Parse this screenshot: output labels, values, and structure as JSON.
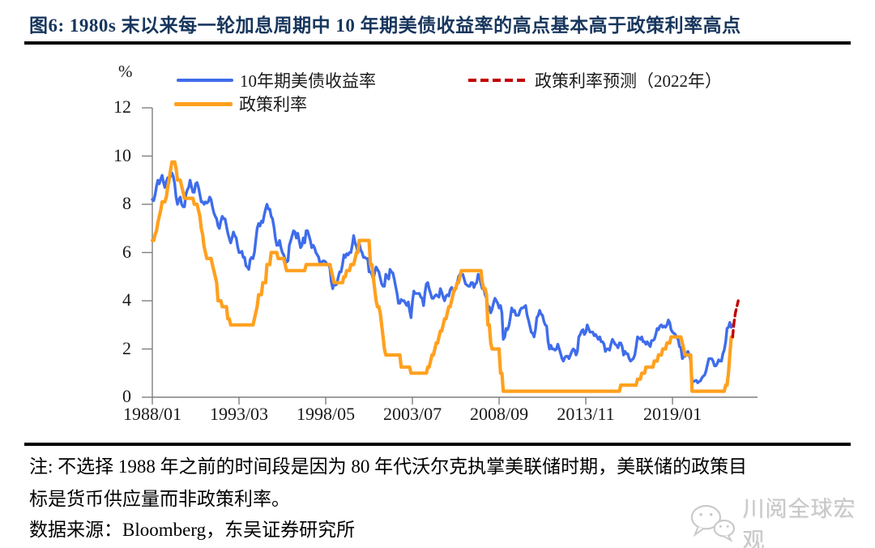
{
  "title": "图6: 1980s 末以来每一轮加息周期中 10 年期美债收益率的高点基本高于政策利率高点",
  "unit_label": "%",
  "legend": [
    {
      "label": "10年期美债收益率",
      "color": "#3E6CEB",
      "style": "solid"
    },
    {
      "label": "政策利率",
      "color": "#FFA01E",
      "style": "solid"
    },
    {
      "label": "政策利率预测（2022年）",
      "color": "#C00000",
      "style": "dashed"
    }
  ],
  "note_lines": [
    "注: 不选择 1988 年之前的时间段是因为 80 年代沃尔克执掌美联储时期，美联储的政策目",
    "标是货币供应量而非政策利率。"
  ],
  "source": "数据来源：Bloomberg，东吴证券研究所",
  "watermark": "川阅全球宏观",
  "colors": {
    "title": "#17365D",
    "axis": "#7f7f7f",
    "tick_text": "#1a1a1a",
    "watermark": "#c7c7c7"
  },
  "chart_data": {
    "type": "line",
    "title": "",
    "ylabel": "%",
    "ylim": [
      0,
      12
    ],
    "y_ticks": [
      0,
      2,
      4,
      6,
      8,
      10,
      12
    ],
    "x_tick_labels": [
      "1988/01",
      "1993/03",
      "1998/05",
      "2003/07",
      "2008/09",
      "2013/11",
      "2019/01"
    ],
    "x_step": "month",
    "grid": false,
    "legend_position": "top",
    "series": [
      {
        "name": "10年期美债收益率",
        "color": "#3E6CEB",
        "dash": null,
        "start": "1988/01",
        "values": [
          8.2,
          8.15,
          8.4,
          8.75,
          9.0,
          8.85,
          9.05,
          9.2,
          8.9,
          8.7,
          8.95,
          9.1,
          9.05,
          9.15,
          9.3,
          9.15,
          8.85,
          8.3,
          8.0,
          8.2,
          8.3,
          8.0,
          7.9,
          7.9,
          8.4,
          8.6,
          8.7,
          9.0,
          8.75,
          8.5,
          8.5,
          8.85,
          8.9,
          8.7,
          8.4,
          8.1,
          8.1,
          8.0,
          8.1,
          8.05,
          8.1,
          8.3,
          8.2,
          7.9,
          7.65,
          7.5,
          7.4,
          7.1,
          7.0,
          7.3,
          7.5,
          7.4,
          7.4,
          7.1,
          6.8,
          6.6,
          6.4,
          6.6,
          6.85,
          6.7,
          6.6,
          6.25,
          6.0,
          6.0,
          6.05,
          5.8,
          5.8,
          5.45,
          5.4,
          5.3,
          5.7,
          5.8,
          5.75,
          6.0,
          6.5,
          7.0,
          7.2,
          7.1,
          7.3,
          7.25,
          7.55,
          7.8,
          8.0,
          7.8,
          7.8,
          7.5,
          7.4,
          7.05,
          6.6,
          6.3,
          6.3,
          6.5,
          6.2,
          6.0,
          5.9,
          5.7,
          5.6,
          5.65,
          6.3,
          6.5,
          6.7,
          6.9,
          6.85,
          6.6,
          6.8,
          6.5,
          6.2,
          6.3,
          6.6,
          6.4,
          6.9,
          6.9,
          6.7,
          6.5,
          6.2,
          6.3,
          6.2,
          6.0,
          5.9,
          5.8,
          5.5,
          5.6,
          5.65,
          5.65,
          5.6,
          5.5,
          5.5,
          5.35,
          4.8,
          4.5,
          4.8,
          4.65,
          4.7,
          5.0,
          5.2,
          5.2,
          5.5,
          5.9,
          5.8,
          5.95,
          5.9,
          6.0,
          6.0,
          6.3,
          6.7,
          6.4,
          6.25,
          6.0,
          6.4,
          6.1,
          6.0,
          5.8,
          5.8,
          5.75,
          5.75,
          5.2,
          5.2,
          5.1,
          4.9,
          5.15,
          5.4,
          5.3,
          5.2,
          4.95,
          4.7,
          4.6,
          4.6,
          5.1,
          5.0,
          4.9,
          5.3,
          5.2,
          5.15,
          4.9,
          4.6,
          4.3,
          3.9,
          3.9,
          4.05,
          4.0,
          4.0,
          3.9,
          3.8,
          3.95,
          3.6,
          3.3,
          3.95,
          4.4,
          4.3,
          4.3,
          4.3,
          4.3,
          4.15,
          4.1,
          3.8,
          4.35,
          4.7,
          4.75,
          4.5,
          4.3,
          4.1,
          4.1,
          4.2,
          4.25,
          4.2,
          4.15,
          4.5,
          4.35,
          4.15,
          4.0,
          4.2,
          4.25,
          4.2,
          4.45,
          4.55,
          4.45,
          4.4,
          4.55,
          4.7,
          5.0,
          5.1,
          5.1,
          5.1,
          4.9,
          4.7,
          4.65,
          4.6,
          4.6,
          4.75,
          4.75,
          4.55,
          4.7,
          4.75,
          5.1,
          5.0,
          4.7,
          4.5,
          4.55,
          4.25,
          4.1,
          3.75,
          3.75,
          3.5,
          3.65,
          3.9,
          4.1,
          4.0,
          3.9,
          3.7,
          3.8,
          3.5,
          2.4,
          2.5,
          2.85,
          2.8,
          2.95,
          3.3,
          3.7,
          3.55,
          3.6,
          3.4,
          3.4,
          3.4,
          3.6,
          3.7,
          3.7,
          3.75,
          3.8,
          3.4,
          3.2,
          2.95,
          2.7,
          2.65,
          2.5,
          2.8,
          3.3,
          3.4,
          3.6,
          3.45,
          3.4,
          3.15,
          3.0,
          2.95,
          2.3,
          2.0,
          2.15,
          2.0,
          2.0,
          1.95,
          2.0,
          2.2,
          2.0,
          1.8,
          1.6,
          1.5,
          1.65,
          1.7,
          1.7,
          1.6,
          1.75,
          1.9,
          2.0,
          1.95,
          1.75,
          1.9,
          2.5,
          2.6,
          2.75,
          2.8,
          2.6,
          2.7,
          3.0,
          2.85,
          2.7,
          2.7,
          2.7,
          2.55,
          2.6,
          2.5,
          2.4,
          2.5,
          2.3,
          2.3,
          2.2,
          1.9,
          2.0,
          2.0,
          1.95,
          2.2,
          2.4,
          2.3,
          2.2,
          2.15,
          2.05,
          2.25,
          2.25,
          2.1,
          1.75,
          1.9,
          1.8,
          1.8,
          1.6,
          1.5,
          1.55,
          1.6,
          1.75,
          2.1,
          2.5,
          2.45,
          2.4,
          2.5,
          2.3,
          2.3,
          2.2,
          2.3,
          2.2,
          2.1,
          2.35,
          2.35,
          2.4,
          2.6,
          2.85,
          2.8,
          2.95,
          3.0,
          2.9,
          2.95,
          2.9,
          3.0,
          3.2,
          3.1,
          2.8,
          2.7,
          2.65,
          2.6,
          2.5,
          2.4,
          2.1,
          2.05,
          1.6,
          1.7,
          1.7,
          1.8,
          1.9,
          1.75,
          1.5,
          0.7,
          0.65,
          0.68,
          0.7,
          0.6,
          0.65,
          0.68,
          0.8,
          0.87,
          0.92,
          1.1,
          1.35,
          1.6,
          1.6,
          1.6,
          1.5,
          1.3,
          1.3,
          1.4,
          1.55,
          1.5,
          1.5,
          1.8,
          1.95,
          2.3,
          2.85,
          2.9,
          3.1,
          2.9,
          3.0
        ]
      },
      {
        "name": "政策利率",
        "color": "#FFA01E",
        "dash": null,
        "start": "1988/01",
        "values": [
          6.5,
          6.5,
          6.75,
          6.9,
          7.25,
          7.5,
          7.75,
          8.1,
          8.1,
          8.1,
          8.3,
          8.7,
          9.0,
          9.4,
          9.75,
          9.75,
          9.75,
          9.5,
          9.0,
          9.0,
          9.0,
          8.75,
          8.5,
          8.25,
          8.25,
          8.25,
          8.25,
          8.25,
          8.25,
          8.25,
          8.0,
          8.0,
          8.0,
          7.75,
          7.5,
          7.0,
          6.75,
          6.25,
          6.0,
          5.75,
          5.75,
          5.75,
          5.75,
          5.5,
          5.25,
          5.0,
          4.75,
          4.0,
          4.0,
          4.0,
          3.75,
          3.75,
          3.75,
          3.75,
          3.25,
          3.25,
          3.0,
          3.0,
          3.0,
          3.0,
          3.0,
          3.0,
          3.0,
          3.0,
          3.0,
          3.0,
          3.0,
          3.0,
          3.0,
          3.0,
          3.0,
          3.0,
          3.0,
          3.25,
          3.5,
          3.75,
          4.25,
          4.25,
          4.25,
          4.75,
          4.75,
          4.75,
          5.5,
          5.5,
          5.5,
          6.0,
          6.0,
          6.0,
          6.0,
          6.0,
          5.75,
          5.75,
          5.75,
          5.75,
          5.75,
          5.5,
          5.25,
          5.25,
          5.25,
          5.25,
          5.25,
          5.25,
          5.25,
          5.25,
          5.25,
          5.25,
          5.25,
          5.25,
          5.25,
          5.25,
          5.5,
          5.5,
          5.5,
          5.5,
          5.5,
          5.5,
          5.5,
          5.5,
          5.5,
          5.5,
          5.5,
          5.5,
          5.5,
          5.5,
          5.5,
          5.5,
          5.5,
          5.5,
          5.25,
          5.0,
          4.75,
          4.75,
          4.75,
          4.75,
          4.75,
          4.75,
          4.75,
          5.0,
          5.0,
          5.25,
          5.25,
          5.25,
          5.5,
          5.5,
          5.5,
          5.75,
          6.0,
          6.0,
          6.5,
          6.5,
          6.5,
          6.5,
          6.5,
          6.5,
          6.5,
          6.5,
          5.5,
          5.5,
          5.0,
          4.5,
          4.0,
          3.75,
          3.75,
          3.5,
          3.0,
          2.5,
          2.0,
          1.75,
          1.75,
          1.75,
          1.75,
          1.75,
          1.75,
          1.75,
          1.75,
          1.75,
          1.75,
          1.75,
          1.25,
          1.25,
          1.25,
          1.25,
          1.25,
          1.25,
          1.25,
          1.0,
          1.0,
          1.0,
          1.0,
          1.0,
          1.0,
          1.0,
          1.0,
          1.0,
          1.0,
          1.0,
          1.0,
          1.25,
          1.25,
          1.5,
          1.75,
          1.75,
          2.0,
          2.25,
          2.25,
          2.5,
          2.75,
          2.75,
          3.0,
          3.25,
          3.25,
          3.5,
          3.75,
          3.75,
          4.0,
          4.25,
          4.5,
          4.5,
          4.75,
          4.75,
          5.0,
          5.25,
          5.25,
          5.25,
          5.25,
          5.25,
          5.25,
          5.25,
          5.25,
          5.25,
          5.25,
          5.25,
          5.25,
          5.25,
          5.25,
          5.25,
          4.75,
          4.5,
          4.5,
          4.25,
          3.0,
          3.0,
          2.25,
          2.0,
          2.0,
          2.0,
          2.0,
          2.0,
          2.0,
          1.0,
          1.0,
          0.25,
          0.25,
          0.25,
          0.25,
          0.25,
          0.25,
          0.25,
          0.25,
          0.25,
          0.25,
          0.25,
          0.25,
          0.25,
          0.25,
          0.25,
          0.25,
          0.25,
          0.25,
          0.25,
          0.25,
          0.25,
          0.25,
          0.25,
          0.25,
          0.25,
          0.25,
          0.25,
          0.25,
          0.25,
          0.25,
          0.25,
          0.25,
          0.25,
          0.25,
          0.25,
          0.25,
          0.25,
          0.25,
          0.25,
          0.25,
          0.25,
          0.25,
          0.25,
          0.25,
          0.25,
          0.25,
          0.25,
          0.25,
          0.25,
          0.25,
          0.25,
          0.25,
          0.25,
          0.25,
          0.25,
          0.25,
          0.25,
          0.25,
          0.25,
          0.25,
          0.25,
          0.25,
          0.25,
          0.25,
          0.25,
          0.25,
          0.25,
          0.25,
          0.25,
          0.25,
          0.25,
          0.25,
          0.25,
          0.25,
          0.25,
          0.25,
          0.25,
          0.25,
          0.25,
          0.25,
          0.25,
          0.25,
          0.25,
          0.25,
          0.5,
          0.5,
          0.5,
          0.5,
          0.5,
          0.5,
          0.5,
          0.5,
          0.5,
          0.5,
          0.5,
          0.5,
          0.75,
          0.75,
          0.75,
          1.0,
          1.0,
          1.0,
          1.25,
          1.25,
          1.25,
          1.25,
          1.25,
          1.25,
          1.5,
          1.5,
          1.5,
          1.75,
          1.75,
          1.75,
          2.0,
          2.0,
          2.0,
          2.25,
          2.25,
          2.25,
          2.5,
          2.5,
          2.5,
          2.5,
          2.5,
          2.5,
          2.5,
          2.5,
          2.25,
          2.0,
          1.75,
          1.75,
          1.75,
          1.75,
          1.75,
          0.25,
          0.25,
          0.25,
          0.25,
          0.25,
          0.25,
          0.25,
          0.25,
          0.25,
          0.25,
          0.25,
          0.25,
          0.25,
          0.25,
          0.25,
          0.25,
          0.25,
          0.25,
          0.25,
          0.25,
          0.25,
          0.25,
          0.25,
          0.25,
          0.5,
          0.5,
          1.0,
          1.75,
          2.5,
          2.5
        ]
      },
      {
        "name": "政策利率预测（2022年）",
        "color": "#C00000",
        "dash": [
          8,
          5
        ],
        "start": "2022/08",
        "values": [
          2.5,
          3.1,
          3.5,
          3.75,
          4.0
        ]
      }
    ]
  }
}
